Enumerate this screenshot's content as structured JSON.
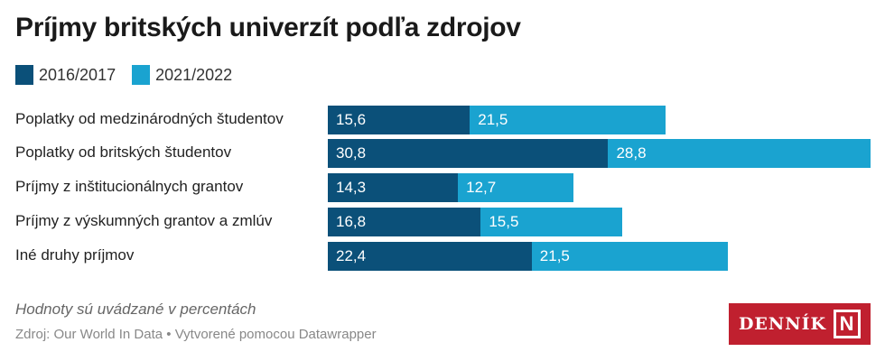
{
  "chart_data": {
    "type": "bar",
    "orientation": "horizontal",
    "stacked": true,
    "title": "Príjmy britských univerzít podľa zdrojov",
    "categories": [
      "Poplatky od medzinárodných študentov",
      "Poplatky od britských študentov",
      "Príjmy z inštitucionálnych grantov",
      "Príjmy z výskumných grantov a zmlúv",
      "Iné druhy príjmov"
    ],
    "series": [
      {
        "name": "2016/2017",
        "color": "#0b5079",
        "values": [
          15.6,
          30.8,
          14.3,
          16.8,
          22.4
        ],
        "labels": [
          "15,6",
          "30,8",
          "14,3",
          "16,8",
          "22,4"
        ]
      },
      {
        "name": "2021/2022",
        "color": "#1aa3d0",
        "values": [
          21.5,
          28.8,
          12.7,
          15.5,
          21.5
        ],
        "labels": [
          "21,5",
          "28,8",
          "12,7",
          "15,5",
          "21,5"
        ]
      }
    ],
    "legend_position": "top-left",
    "grid": false
  },
  "footer": {
    "note": "Hodnoty sú uvádzané v percentách",
    "source": "Zdroj: Our World In Data • Vytvorené pomocou Datawrapper",
    "logo_text": "DENNÍK N"
  }
}
